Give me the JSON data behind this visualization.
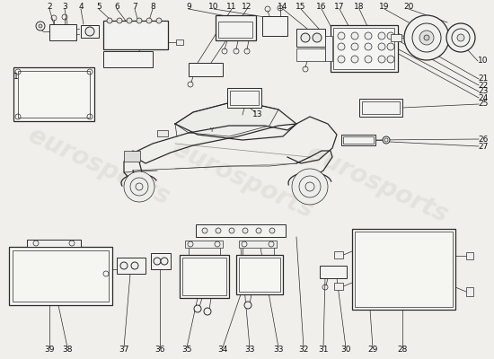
{
  "bg_color": "#f0efeb",
  "line_color": "#2a2a2a",
  "watermark_color": "#d8d6cf",
  "watermark_alpha": 0.5,
  "watermark_text": "eurosports",
  "watermark_fontsize": 20,
  "label_fontsize": 6.5,
  "label_color": "#111111",
  "lw_main": 0.9,
  "lw_thin": 0.5,
  "lw_med": 0.7
}
